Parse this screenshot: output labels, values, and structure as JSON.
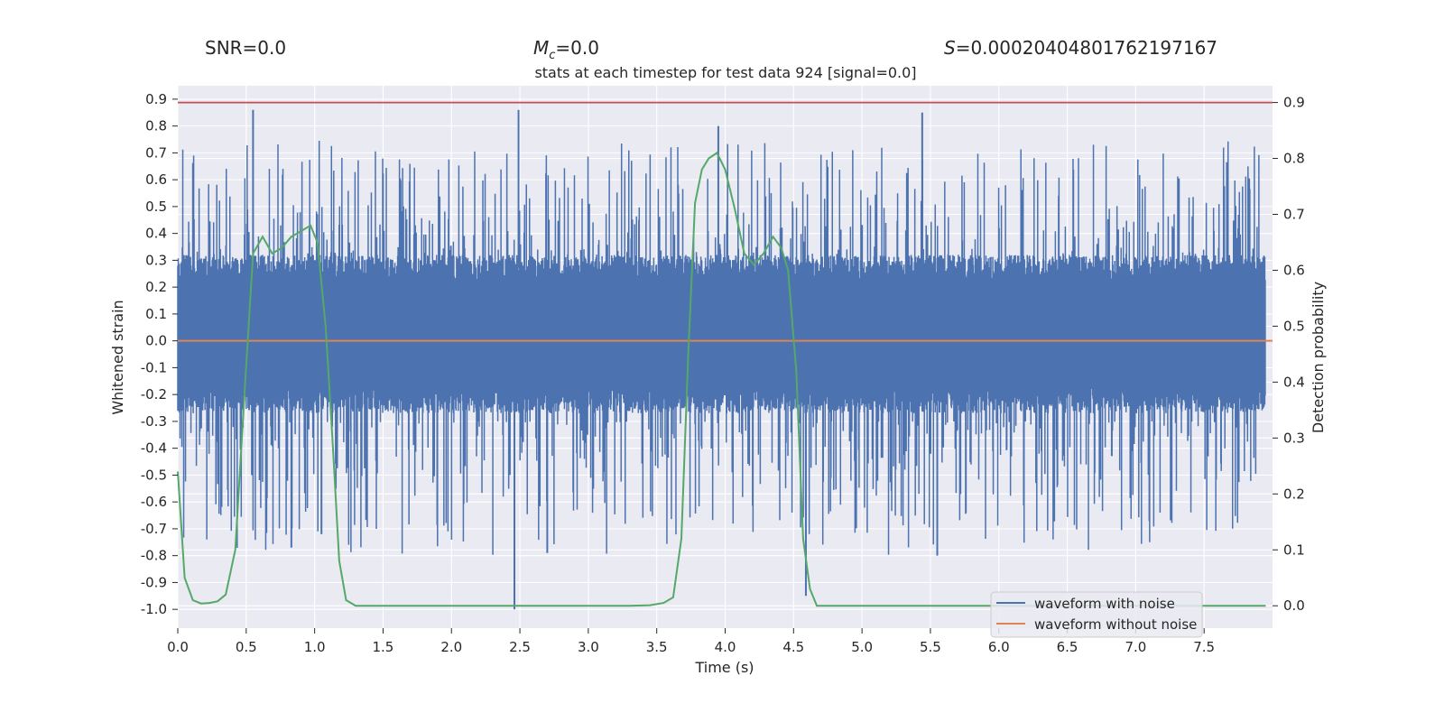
{
  "chart_data": {
    "type": "line",
    "title": "stats at each timestep for test data 924 [signal=0.0]",
    "header_stats": {
      "snr": "SNR=0.0",
      "mc_symbol": "M",
      "mc_sub": "c",
      "mc_value": "=0.0",
      "s_symbol": "S",
      "s_value": "=0.00020404801762197167"
    },
    "xlabel": "Time (s)",
    "ylabel_left": "Whitened strain",
    "ylabel_right": "Detection probability",
    "xlim": [
      0.0,
      8.0
    ],
    "ylim_left": [
      -1.07,
      0.95
    ],
    "ylim_right": [
      -0.04,
      0.93
    ],
    "x_ticks": [
      "0.0",
      "0.5",
      "1.0",
      "1.5",
      "2.0",
      "2.5",
      "3.0",
      "3.5",
      "4.0",
      "4.5",
      "5.0",
      "5.5",
      "6.0",
      "6.5",
      "7.0",
      "7.5"
    ],
    "y_ticks_left": [
      "0.9",
      "0.8",
      "0.7",
      "0.6",
      "0.5",
      "0.4",
      "0.3",
      "0.2",
      "0.1",
      "0.0",
      "-0.1",
      "-0.2",
      "-0.3",
      "-0.4",
      "-0.5",
      "-0.6",
      "-0.7",
      "-0.8",
      "-0.9",
      "-1.0"
    ],
    "y_ticks_right": [
      "0.9",
      "0.8",
      "0.7",
      "0.6",
      "0.5",
      "0.4",
      "0.3",
      "0.2",
      "0.1",
      "0.0"
    ],
    "threshold": {
      "value": 0.9,
      "axis": "right",
      "color": "#c44e52"
    },
    "noise_band": {
      "core": [
        -0.22,
        0.27
      ],
      "spike_range": [
        -0.8,
        0.75
      ]
    },
    "series": [
      {
        "name": "waveform with noise",
        "color": "#4c72b0",
        "axis": "left",
        "spikes": [
          {
            "x": 0.55,
            "y": 0.86
          },
          {
            "x": 2.49,
            "y": 0.86
          },
          {
            "x": 2.46,
            "y": -1.0
          },
          {
            "x": 5.44,
            "y": 0.85
          },
          {
            "x": 3.95,
            "y": 0.8
          },
          {
            "x": 4.59,
            "y": -0.95
          },
          {
            "x": 1.05,
            "y": -0.72
          },
          {
            "x": 0.83,
            "y": -0.77
          },
          {
            "x": 5.55,
            "y": -0.8
          },
          {
            "x": 2.7,
            "y": -0.79
          }
        ]
      },
      {
        "name": "waveform without noise",
        "color": "#dd8452",
        "axis": "left",
        "constant": 0.0
      },
      {
        "name": "detection probability",
        "color": "#55a868",
        "axis": "right",
        "x": [
          0.0,
          0.05,
          0.11,
          0.17,
          0.23,
          0.29,
          0.35,
          0.42,
          0.48,
          0.55,
          0.62,
          0.69,
          0.76,
          0.83,
          0.9,
          0.97,
          1.02,
          1.08,
          1.13,
          1.18,
          1.23,
          1.3,
          1.4,
          1.6,
          2.0,
          2.5,
          3.0,
          3.3,
          3.45,
          3.55,
          3.62,
          3.68,
          3.73,
          3.78,
          3.83,
          3.88,
          3.94,
          4.0,
          4.07,
          4.14,
          4.21,
          4.28,
          4.35,
          4.41,
          4.46,
          4.52,
          4.57,
          4.62,
          4.67,
          4.75,
          5.0,
          6.0,
          7.0,
          7.95
        ],
        "y": [
          0.24,
          0.05,
          0.01,
          0.004,
          0.005,
          0.008,
          0.02,
          0.1,
          0.35,
          0.63,
          0.66,
          0.63,
          0.64,
          0.66,
          0.67,
          0.68,
          0.65,
          0.5,
          0.3,
          0.08,
          0.01,
          0.0,
          0.0,
          0.0,
          0.0,
          0.0,
          0.0,
          0.0,
          0.001,
          0.005,
          0.015,
          0.12,
          0.45,
          0.72,
          0.78,
          0.8,
          0.81,
          0.78,
          0.71,
          0.63,
          0.61,
          0.63,
          0.66,
          0.64,
          0.6,
          0.42,
          0.12,
          0.03,
          0.0,
          0.0,
          0.0,
          0.0,
          0.0,
          0.0
        ]
      }
    ],
    "legend": {
      "placement": "bottom-right",
      "entries": [
        "waveform with noise",
        "waveform without noise"
      ]
    },
    "colors": {
      "background": "#eaeaf2",
      "grid": "#ffffff"
    }
  }
}
